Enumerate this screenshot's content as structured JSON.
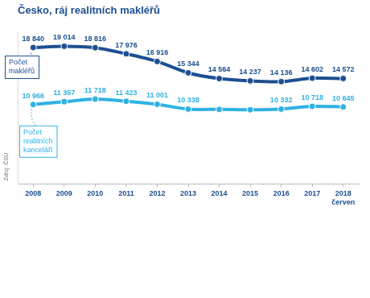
{
  "chart_data": {
    "type": "line",
    "title": "Česko, ráj realitních makléřů",
    "source": "Zdroj: ČSÚ",
    "categories": [
      "2008",
      "2009",
      "2010",
      "2011",
      "2012",
      "2013",
      "2014",
      "2015",
      "2016",
      "2017",
      "2018 červen"
    ],
    "series": [
      {
        "name": "Počet makléřů",
        "color": "#1d4f91",
        "values": [
          18840,
          19014,
          18816,
          17976,
          16916,
          15344,
          14564,
          14237,
          14136,
          14602,
          14572
        ],
        "value_labels": [
          "18 840",
          "19 014",
          "18 816",
          "17 976",
          "16 916",
          "15 344",
          "14 564",
          "14 237",
          "14 136",
          "14 602",
          "14 572"
        ]
      },
      {
        "name": "Počet realitních kanceláří",
        "color": "#2fb2e4",
        "values": [
          10966,
          11357,
          11718,
          11423,
          11001,
          10338,
          10300,
          10250,
          10332,
          10718,
          10645
        ],
        "value_labels": [
          "10 966",
          "11 357",
          "11 718",
          "11 423",
          "11 001",
          "10 338",
          null,
          null,
          "10 332",
          "10 718",
          "10 645"
        ]
      }
    ],
    "ylim": [
      0,
      21000
    ],
    "tick_labels": "x",
    "grid": false,
    "data_labels": true,
    "marker": "circle"
  }
}
